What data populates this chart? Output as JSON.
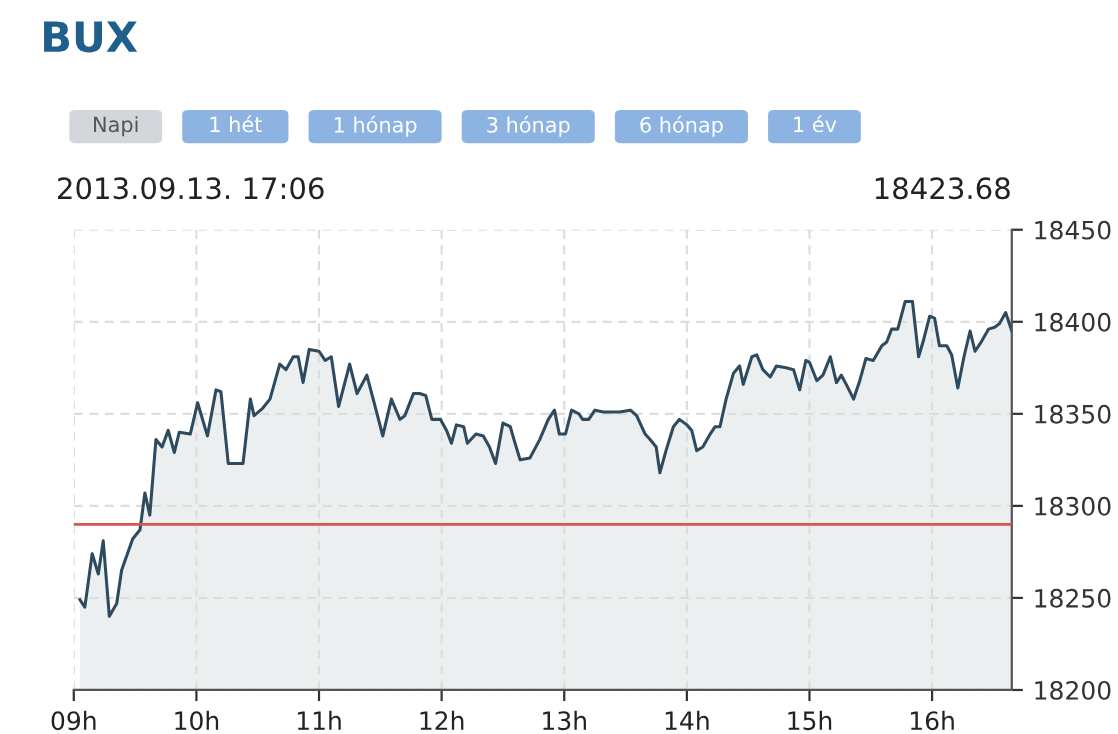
{
  "chart_data": {
    "type": "area",
    "title": "BUX",
    "annotations": [
      "Napi",
      "1 hét",
      "1 hónap",
      "3 hónap",
      "6 hónap",
      "1 év",
      "2013.09.13. 17:06",
      "18423.68"
    ],
    "x": [
      9.05,
      9.09,
      9.15,
      9.2,
      9.24,
      9.29,
      9.35,
      9.39,
      9.48,
      9.54,
      9.58,
      9.62,
      9.67,
      9.72,
      9.77,
      9.82,
      9.86,
      9.95,
      10.01,
      10.09,
      10.16,
      10.2,
      10.26,
      10.38,
      10.44,
      10.47,
      10.54,
      10.6,
      10.68,
      10.73,
      10.79,
      10.83,
      10.87,
      10.92,
      11.0,
      11.05,
      11.1,
      11.16,
      11.25,
      11.31,
      11.39,
      11.45,
      11.52,
      11.59,
      11.66,
      11.7,
      11.77,
      11.82,
      11.87,
      11.92,
      11.99,
      12.04,
      12.08,
      12.12,
      12.18,
      12.21,
      12.28,
      12.34,
      12.39,
      12.44,
      12.5,
      12.56,
      12.59,
      12.64,
      12.72,
      12.8,
      12.87,
      12.92,
      12.96,
      13.01,
      13.06,
      13.12,
      13.15,
      13.2,
      13.25,
      13.32,
      13.45,
      13.54,
      13.59,
      13.66,
      13.7,
      13.75,
      13.78,
      13.83,
      13.89,
      13.94,
      14.0,
      14.04,
      14.08,
      14.13,
      14.19,
      14.23,
      14.27,
      14.32,
      14.38,
      14.43,
      14.46,
      14.53,
      14.57,
      14.62,
      14.68,
      14.73,
      14.81,
      14.87,
      14.92,
      14.97,
      15.0,
      15.06,
      15.11,
      15.17,
      15.22,
      15.26,
      15.3,
      15.36,
      15.41,
      15.46,
      15.52,
      15.59,
      15.63,
      15.67,
      15.72,
      15.78,
      15.84,
      15.89,
      15.93,
      15.98,
      16.02,
      16.06,
      16.12,
      16.16,
      16.21,
      16.26,
      16.31,
      16.35,
      16.4,
      16.46,
      16.51,
      16.55,
      16.6,
      16.65
    ],
    "series": [
      {
        "color": "#2e4a5e",
        "values": [
          18249,
          18245,
          18274,
          18263,
          18281,
          18240,
          18247,
          18265,
          18282,
          18287,
          18307,
          18295,
          18336,
          18332,
          18341,
          18329,
          18340,
          18339,
          18356,
          18338,
          18363,
          18362,
          18323,
          18323,
          18358,
          18349,
          18353,
          18358,
          18377,
          18374,
          18381,
          18381,
          18367,
          18385,
          18384,
          18379,
          18381,
          18354,
          18377,
          18361,
          18371,
          18356,
          18338,
          18358,
          18347,
          18349,
          18361,
          18361,
          18360,
          18347,
          18347,
          18341,
          18334,
          18344,
          18343,
          18334,
          18339,
          18338,
          18332,
          18323,
          18345,
          18343,
          18336,
          18325,
          18326,
          18336,
          18347,
          18352,
          18339,
          18339,
          18352,
          18350,
          18347,
          18347,
          18352,
          18351,
          18351,
          18352,
          18349,
          18339,
          18336,
          18332,
          18318,
          18330,
          18343,
          18347,
          18344,
          18341,
          18330,
          18332,
          18339,
          18343,
          18343,
          18358,
          18372,
          18376,
          18366,
          18381,
          18382,
          18374,
          18370,
          18376,
          18375,
          18374,
          18363,
          18379,
          18378,
          18368,
          18371,
          18381,
          18367,
          18371,
          18366,
          18358,
          18368,
          18380,
          18379,
          18387,
          18389,
          18396,
          18396,
          18411,
          18411,
          18381,
          18390,
          18403,
          18402,
          18387,
          18387,
          18382,
          18364,
          18381,
          18395,
          18384,
          18389,
          18396,
          18397,
          18399,
          18405,
          18395
        ]
      }
    ],
    "xlim": [
      9,
      16.65
    ],
    "xticks": [
      {
        "value": 9,
        "label": "09h"
      },
      {
        "value": 10,
        "label": "10h"
      },
      {
        "value": 11,
        "label": "11h"
      },
      {
        "value": 12,
        "label": "12h"
      },
      {
        "value": 13,
        "label": "13h"
      },
      {
        "value": 14,
        "label": "14h"
      },
      {
        "value": 15,
        "label": "15h"
      },
      {
        "value": 16,
        "label": "16h"
      }
    ],
    "ylim": [
      18200,
      18450
    ],
    "yticks": [
      18200,
      18250,
      18300,
      18350,
      18400,
      18450
    ],
    "ref_lines": [
      {
        "axis": "y",
        "value": 18290,
        "color": "#d9534f"
      }
    ],
    "grid": true,
    "legend": false,
    "line_style": "solid",
    "marker": "none"
  }
}
